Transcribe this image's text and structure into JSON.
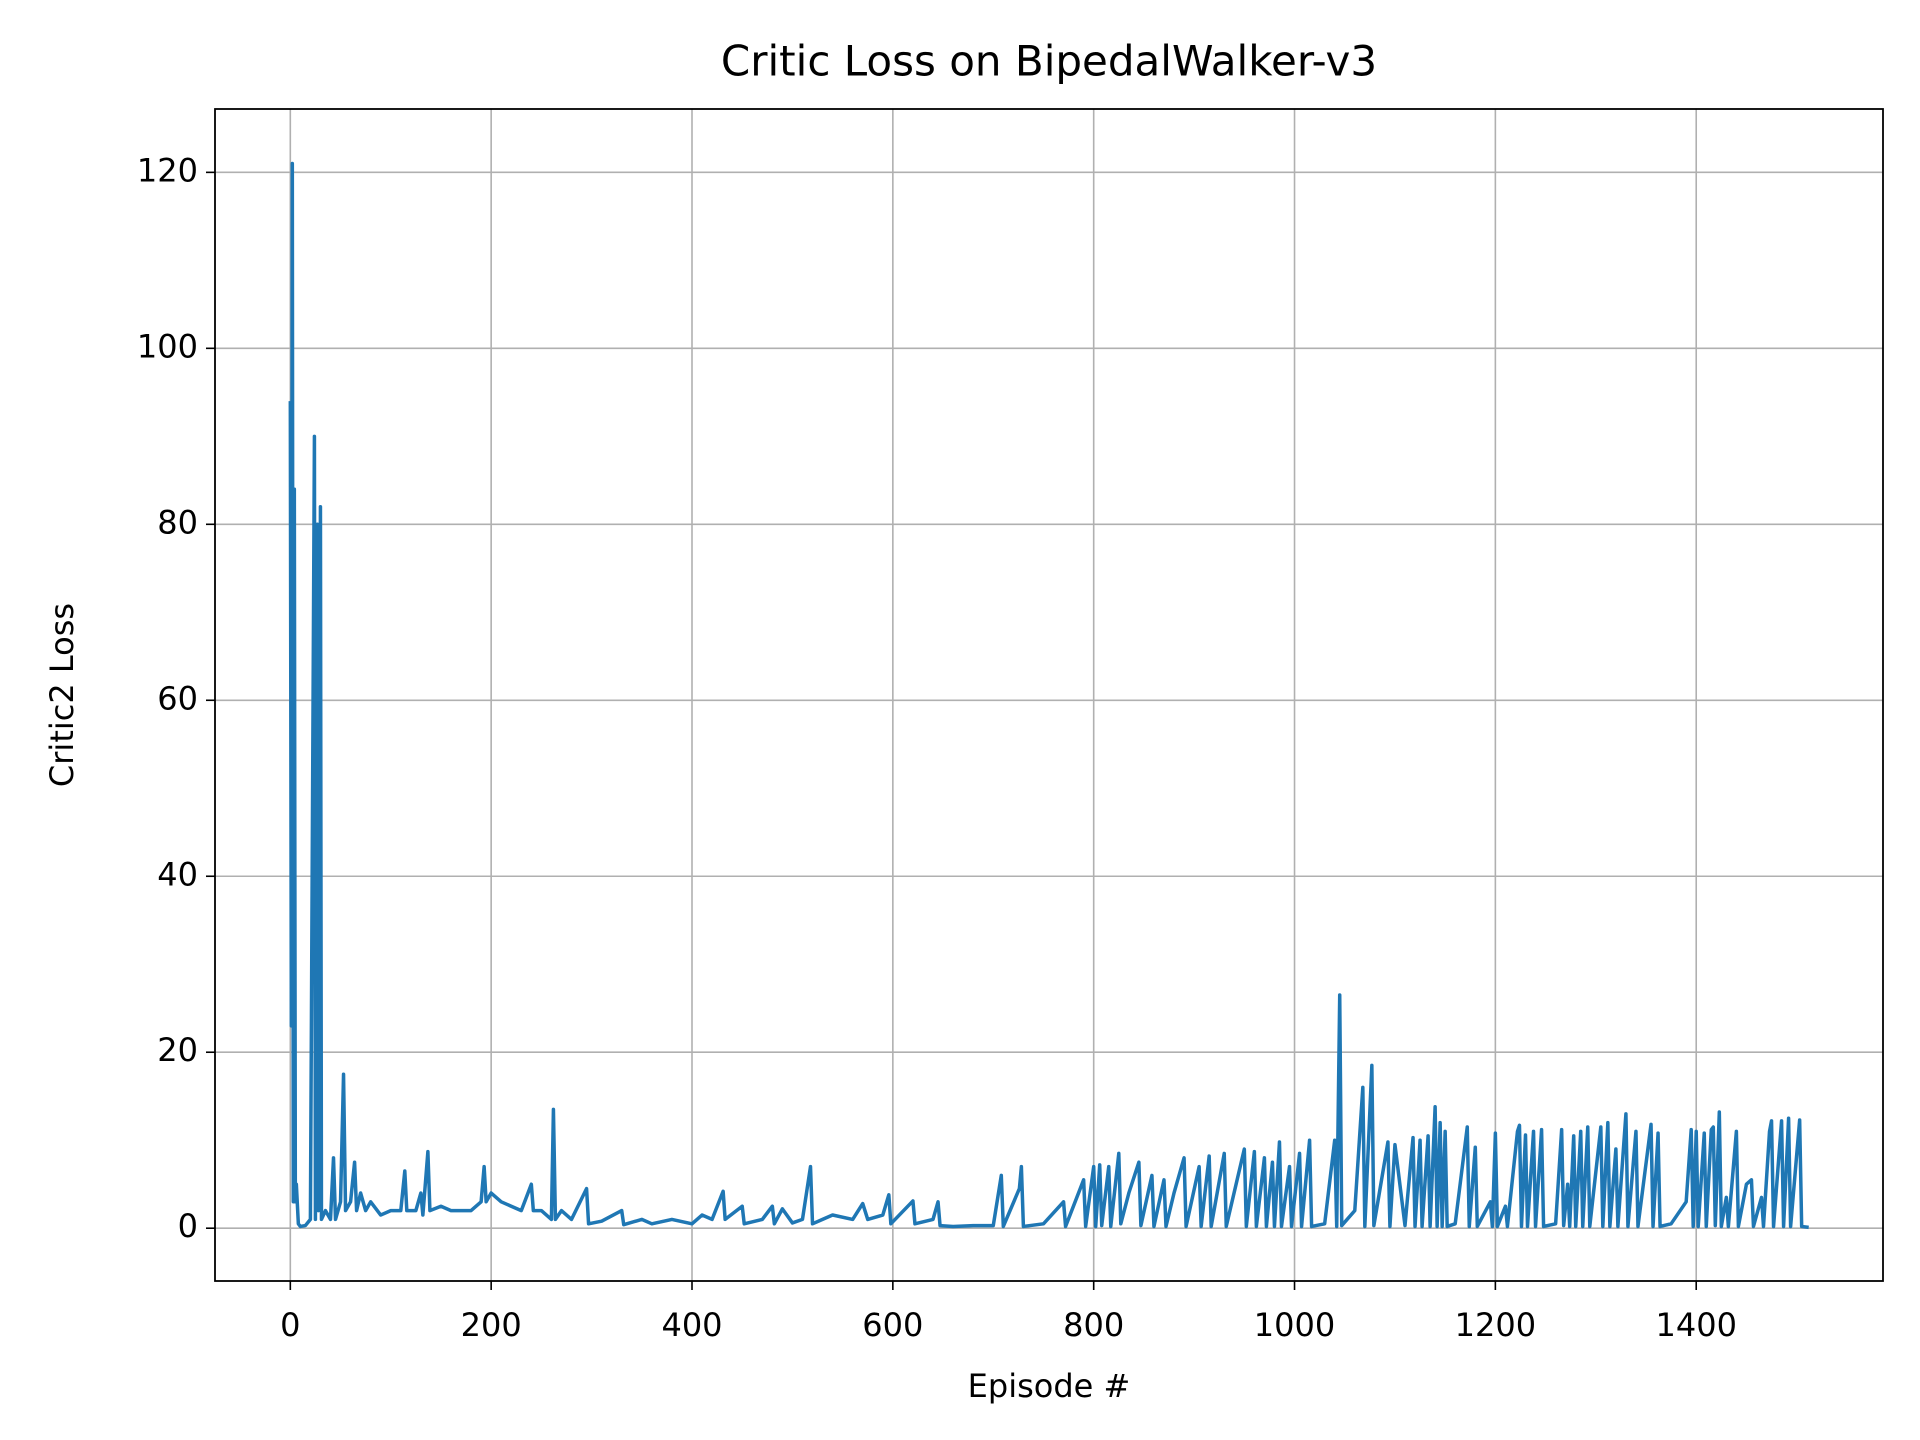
{
  "chart_data": {
    "type": "line",
    "title": "Critic Loss on BipedalWalker-v3",
    "x_label": "Episode #",
    "y_label": "Critic2 Loss",
    "color": "#1f77b4",
    "grid": true,
    "xlim": [
      -75,
      1586
    ],
    "ylim": [
      -6,
      127.2
    ],
    "xticks": [
      0,
      200,
      400,
      600,
      800,
      1000,
      1200,
      1400
    ],
    "yticks": [
      0,
      20,
      40,
      60,
      80,
      100,
      120
    ],
    "x": [
      0,
      1,
      2,
      3,
      4,
      5,
      6,
      8,
      10,
      15,
      20,
      24,
      25,
      27,
      28,
      30,
      31,
      35,
      40,
      43,
      45,
      50,
      53,
      55,
      60,
      64,
      66,
      70,
      75,
      80,
      90,
      100,
      110,
      114,
      116,
      125,
      130,
      132,
      137,
      139,
      150,
      160,
      170,
      180,
      190,
      193,
      195,
      200,
      210,
      220,
      230,
      240,
      242,
      250,
      260,
      262,
      264,
      270,
      280,
      295,
      297,
      310,
      330,
      332,
      350,
      360,
      380,
      400,
      410,
      420,
      431,
      433,
      450,
      452,
      470,
      480,
      482,
      490,
      500,
      510,
      518,
      520,
      530,
      540,
      560,
      570,
      575,
      590,
      596,
      598,
      620,
      622,
      640,
      645,
      647,
      660,
      680,
      700,
      708,
      710,
      726,
      728,
      730,
      750,
      770,
      772,
      790,
      792,
      800,
      802,
      806,
      808,
      815,
      817,
      825,
      827,
      835,
      845,
      847,
      858,
      860,
      870,
      872,
      880,
      890,
      892,
      905,
      907,
      915,
      917,
      930,
      932,
      950,
      952,
      960,
      962,
      970,
      972,
      978,
      980,
      985,
      987,
      995,
      997,
      1005,
      1007,
      1015,
      1017,
      1030,
      1040,
      1042,
      1045,
      1047,
      1060,
      1068,
      1070,
      1077,
      1079,
      1093,
      1095,
      1100,
      1110,
      1118,
      1120,
      1125,
      1127,
      1133,
      1135,
      1140,
      1142,
      1145,
      1147,
      1150,
      1152,
      1160,
      1172,
      1174,
      1180,
      1182,
      1195,
      1197,
      1200,
      1202,
      1210,
      1212,
      1222,
      1224,
      1226,
      1230,
      1232,
      1238,
      1240,
      1246,
      1248,
      1260,
      1266,
      1268,
      1272,
      1274,
      1278,
      1280,
      1285,
      1287,
      1292,
      1294,
      1305,
      1307,
      1312,
      1314,
      1320,
      1322,
      1330,
      1332,
      1340,
      1342,
      1355,
      1357,
      1362,
      1364,
      1375,
      1390,
      1395,
      1397,
      1400,
      1402,
      1408,
      1410,
      1415,
      1417,
      1419,
      1423,
      1425,
      1430,
      1432,
      1440,
      1442,
      1450,
      1455,
      1457,
      1465,
      1467,
      1473,
      1475,
      1477,
      1485,
      1487,
      1492,
      1494,
      1503,
      1505,
      1512
    ],
    "values": [
      94,
      23,
      121,
      3,
      84,
      3,
      5,
      0.5,
      0.2,
      0.3,
      1,
      90,
      1,
      80,
      2,
      82,
      1,
      2,
      1,
      8,
      1,
      3,
      17.5,
      2,
      3,
      7.5,
      2,
      4,
      2,
      3,
      1.5,
      2,
      2,
      6.5,
      2,
      2,
      4,
      1.5,
      8.7,
      2,
      2.5,
      2,
      2,
      2,
      3,
      7,
      3,
      4,
      3,
      2.5,
      2,
      5,
      2,
      2,
      1,
      13.5,
      1,
      2,
      1,
      4.5,
      0.5,
      0.8,
      2,
      0.4,
      1,
      0.5,
      1,
      0.5,
      1.5,
      1,
      4.2,
      1,
      2.5,
      0.5,
      1,
      2.5,
      0.5,
      2.2,
      0.6,
      1,
      7,
      0.5,
      1,
      1.5,
      1,
      2.8,
      1,
      1.5,
      3.8,
      0.5,
      3.1,
      0.5,
      1,
      3,
      0.3,
      0.2,
      0.3,
      0.3,
      6,
      0.2,
      4.5,
      7,
      0.2,
      0.5,
      3,
      0.2,
      5.5,
      0.2,
      7,
      0.2,
      7.2,
      0.3,
      7,
      0.2,
      8.5,
      0.5,
      4,
      7.5,
      0.3,
      6,
      0.2,
      5.5,
      0.2,
      4,
      8,
      0.2,
      7,
      0.2,
      8.2,
      0.2,
      8.5,
      0.2,
      9,
      0.2,
      8.7,
      0.2,
      8,
      0.2,
      7.5,
      0.2,
      9.8,
      0.2,
      7,
      0.2,
      8.5,
      0.2,
      10,
      0.2,
      0.5,
      10,
      0.2,
      26.5,
      0.3,
      2,
      16,
      0.2,
      18.5,
      0.3,
      9.8,
      0.2,
      9.5,
      0.3,
      10.3,
      0.2,
      10,
      0.2,
      10.5,
      0.2,
      13.8,
      0.2,
      12,
      0.2,
      11,
      0.2,
      0.5,
      11.5,
      0.2,
      9.2,
      0.2,
      3,
      0.2,
      10.8,
      0.2,
      2.5,
      0.2,
      11,
      11.7,
      0.2,
      10.6,
      0.2,
      11,
      0.2,
      11.2,
      0.2,
      0.5,
      11.2,
      0.3,
      5,
      0.2,
      10.5,
      0.2,
      11,
      0.2,
      11.5,
      0.2,
      11.5,
      0.2,
      12,
      0.2,
      9,
      0.2,
      13,
      0.2,
      11,
      0.2,
      11.8,
      0.2,
      10.8,
      0.2,
      0.5,
      3,
      11.2,
      0.2,
      11,
      0.2,
      10.8,
      0.2,
      11.2,
      11.5,
      0.3,
      13.2,
      0.2,
      3.5,
      0.2,
      11,
      0.2,
      5,
      5.5,
      0.2,
      3.5,
      0.2,
      11,
      12.2,
      0.2,
      12.2,
      0.2,
      12.5,
      0.2,
      12.3,
      0.2,
      0.1
    ]
  }
}
